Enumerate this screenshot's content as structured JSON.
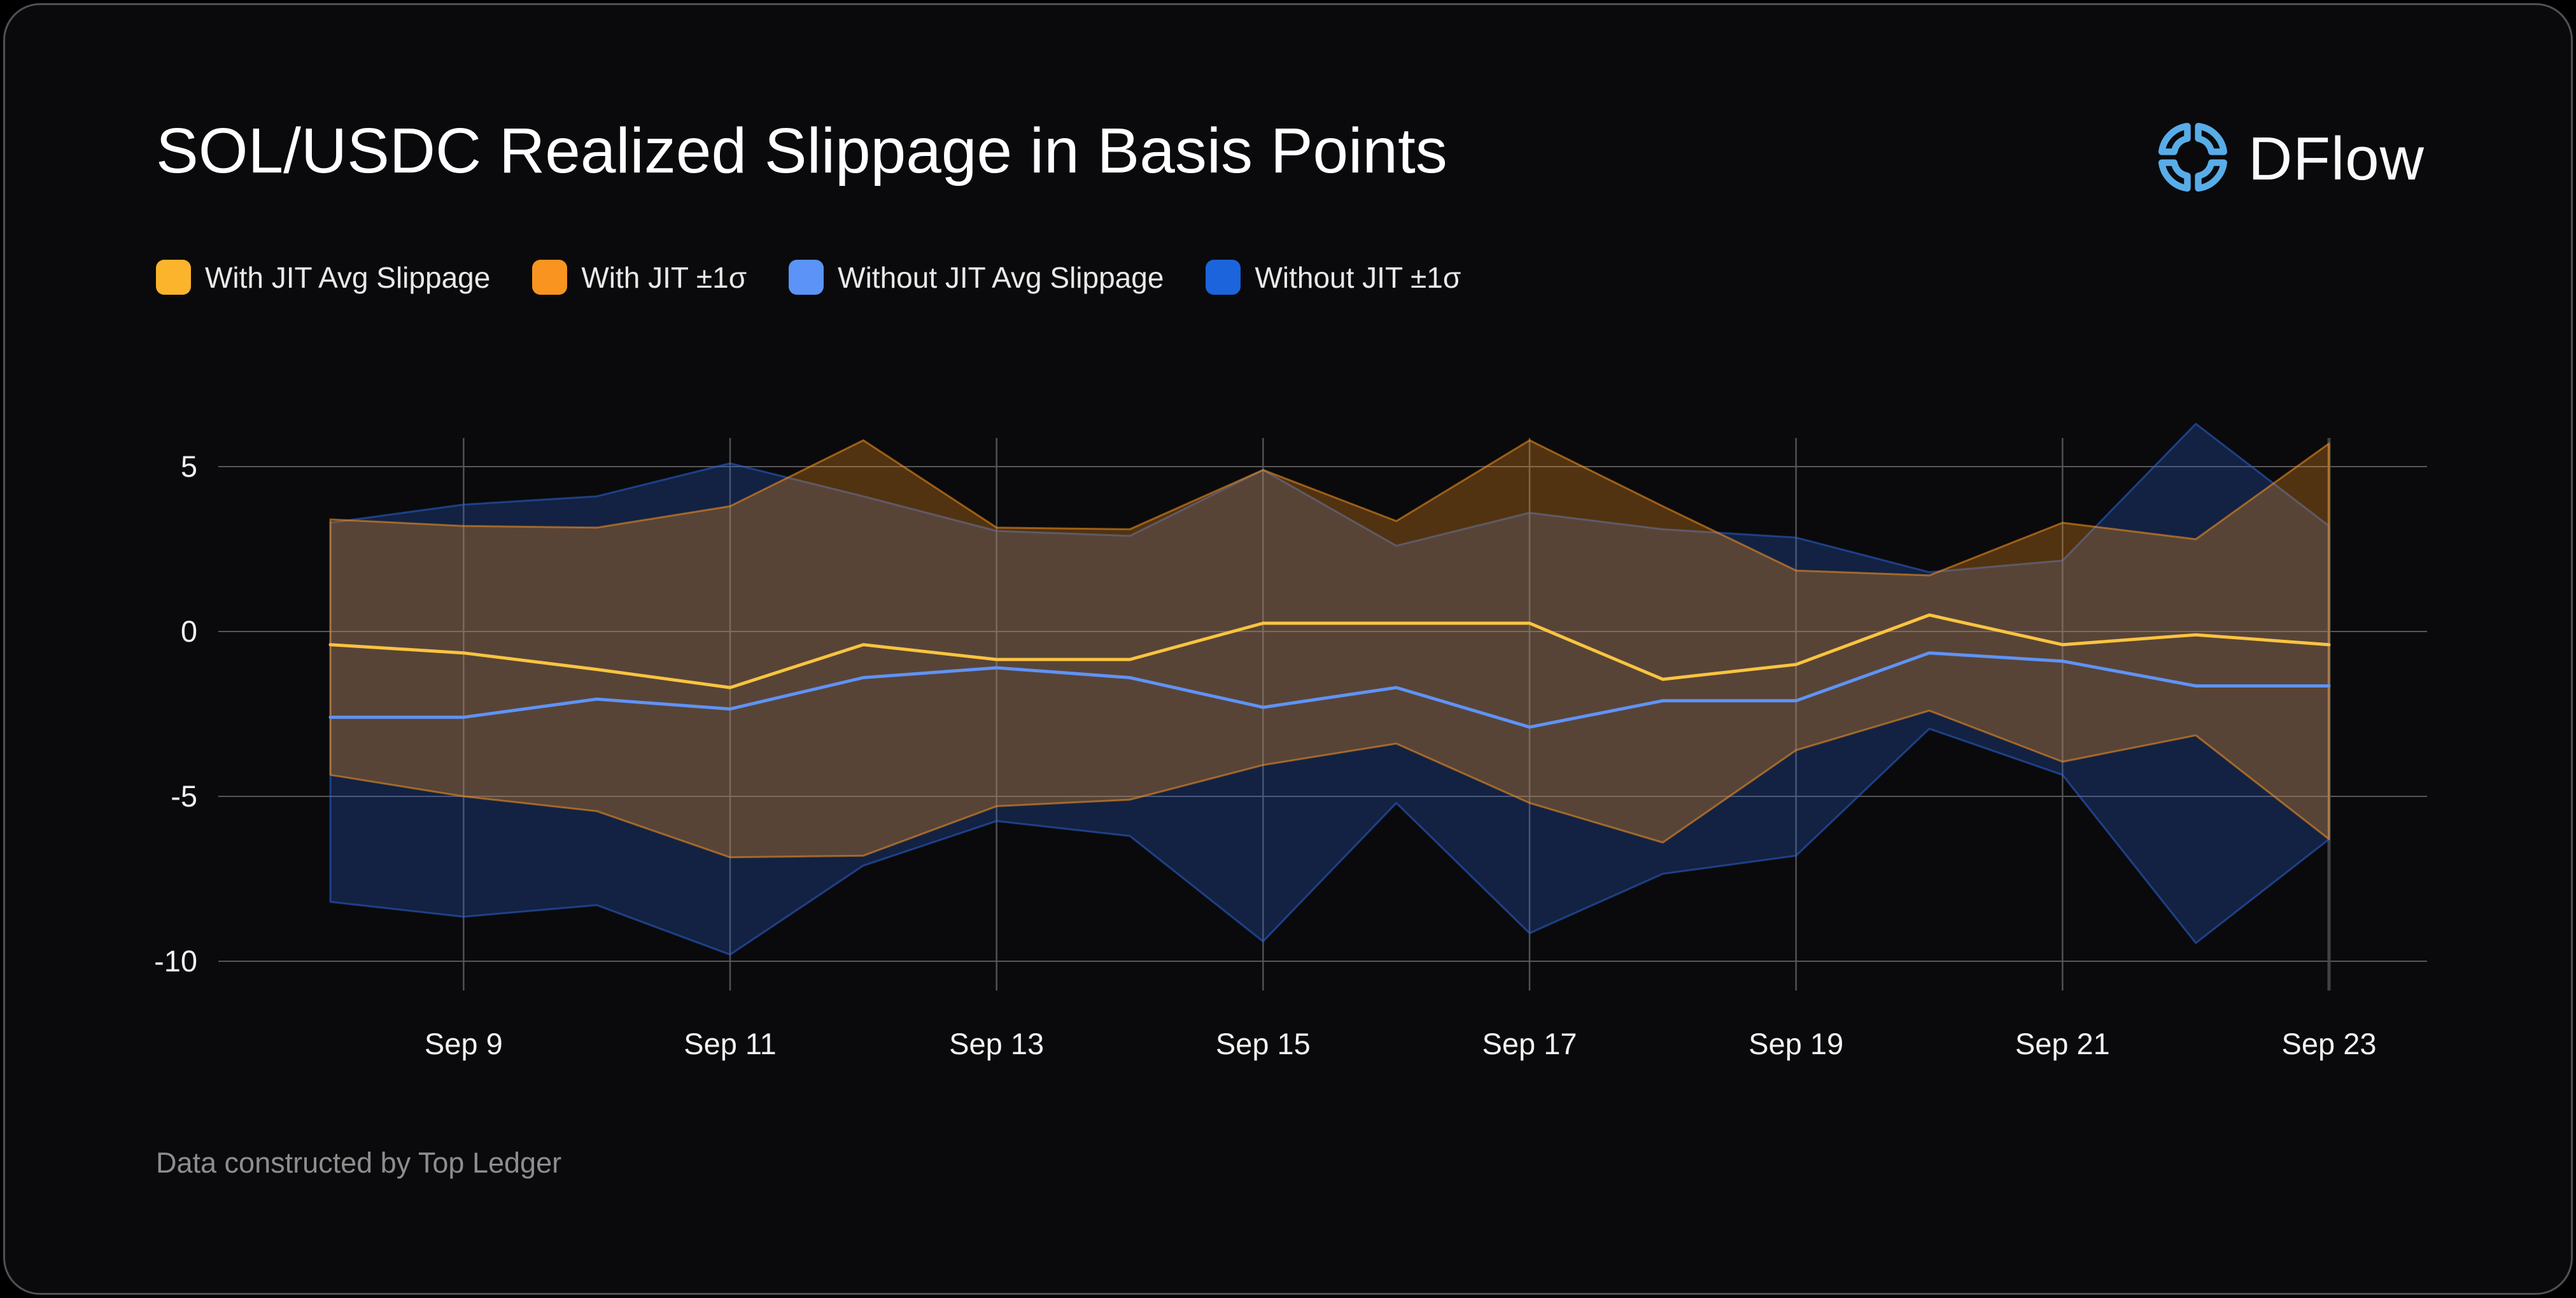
{
  "header": {
    "title": "SOL/USDC Realized Slippage in Basis Points",
    "brand": "DFlow",
    "brand_color": "#58ADE8"
  },
  "legend": [
    {
      "label": "With JIT Avg Slippage",
      "color": "#FBB42C"
    },
    {
      "label": "With JIT ±1σ",
      "color": "#F8941F"
    },
    {
      "label": "Without JIT Avg Slippage",
      "color": "#5B93F7"
    },
    {
      "label": "Without JIT ±1σ",
      "color": "#1C64DC"
    }
  ],
  "footer": {
    "credit": "Data constructed by Top Ledger"
  },
  "colors": {
    "background": "#0a0a0c",
    "grid": "#6b6b6b",
    "vgrid": "#56595d",
    "axis_text": "#f2f2f2",
    "yellow_line": "#F9C440",
    "lightblue_line": "#5F93F5",
    "orange_band": "#F8941F",
    "blue_band": "#2C62D6"
  },
  "chart_data": {
    "type": "area",
    "title": "SOL/USDC Realized Slippage in Basis Points",
    "xlabel": "",
    "ylabel": "Basis points",
    "x": [
      "Sep 8",
      "Sep 9",
      "Sep 10",
      "Sep 11",
      "Sep 12",
      "Sep 13",
      "Sep 14",
      "Sep 15",
      "Sep 16",
      "Sep 17",
      "Sep 18",
      "Sep 19",
      "Sep 20",
      "Sep 21",
      "Sep 22",
      "Sep 23"
    ],
    "x_tick_labels": [
      "Sep 9",
      "Sep 11",
      "Sep 13",
      "Sep 15",
      "Sep 17",
      "Sep 19",
      "Sep 21",
      "Sep 23"
    ],
    "yticks": [
      5,
      0,
      -5,
      -10
    ],
    "ylim": [
      -10.85,
      6.65
    ],
    "grid": true,
    "legend_position": "top-left",
    "series": [
      {
        "name": "Without JIT ±1σ",
        "type": "band",
        "color": "#2C62D6",
        "upper": [
          3.3,
          3.85,
          4.1,
          5.1,
          4.1,
          3.05,
          2.9,
          4.9,
          2.6,
          3.6,
          3.1,
          2.85,
          1.8,
          2.15,
          6.3,
          3.2
        ],
        "lower": [
          -8.2,
          -8.65,
          -8.3,
          -9.8,
          -7.1,
          -5.75,
          -6.2,
          -9.4,
          -5.2,
          -9.15,
          -7.35,
          -6.8,
          -2.95,
          -4.35,
          -9.45,
          -6.3
        ]
      },
      {
        "name": "With JIT ±1σ",
        "type": "band",
        "color": "#F8941F",
        "upper": [
          3.4,
          3.2,
          3.15,
          3.8,
          5.8,
          3.15,
          3.1,
          4.9,
          3.35,
          5.8,
          3.8,
          1.85,
          1.7,
          3.3,
          2.8,
          5.7
        ],
        "lower": [
          -4.35,
          -5.0,
          -5.45,
          -6.85,
          -6.8,
          -5.3,
          -5.1,
          -4.05,
          -3.4,
          -5.2,
          -6.4,
          -3.6,
          -2.4,
          -3.95,
          -3.15,
          -6.3
        ]
      },
      {
        "name": "Without JIT Avg Slippage",
        "type": "line",
        "color": "#5F93F5",
        "values": [
          -2.6,
          -2.6,
          -2.05,
          -2.35,
          -1.4,
          -1.1,
          -1.4,
          -2.3,
          -1.7,
          -2.9,
          -2.1,
          -2.1,
          -0.65,
          -0.9,
          -1.65,
          -1.65
        ]
      },
      {
        "name": "With JIT Avg Slippage",
        "type": "line",
        "color": "#F9C440",
        "values": [
          -0.4,
          -0.65,
          -1.15,
          -1.7,
          -0.4,
          -0.85,
          -0.85,
          0.25,
          0.25,
          0.25,
          -1.45,
          -1.0,
          0.5,
          -0.4,
          -0.1,
          -0.4
        ]
      }
    ]
  }
}
